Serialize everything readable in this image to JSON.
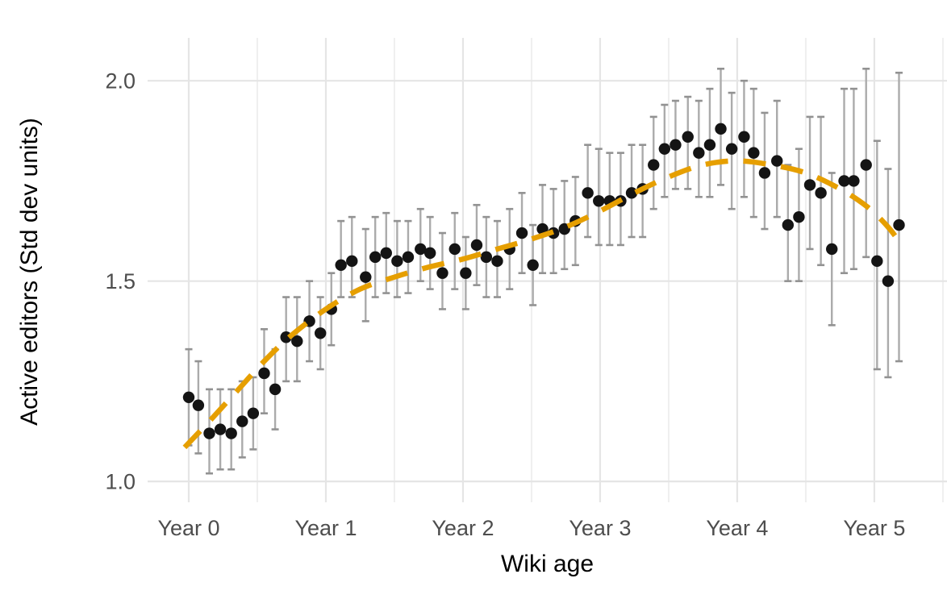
{
  "figure": {
    "xlabel": "Wiki age",
    "ylabel": "Active editors (Std dev units)"
  },
  "colors": {
    "background": "#ffffff",
    "grid_major": "#e5e5e5",
    "grid_minor": "#efefef",
    "point": "#141414",
    "errorbar": "#ababab",
    "errorbar_cap": "#929292",
    "trend": "#e69f00",
    "tick_label": "#4d4d4d",
    "axis_title": "#000000"
  },
  "chart_data": {
    "type": "scatter",
    "title": "",
    "xlabel": "Wiki age",
    "ylabel": "Active editors (Std dev units)",
    "x_unit": "wiki age in years",
    "xlim": [
      -0.3,
      5.53
    ],
    "ylim": [
      0.948,
      2.107
    ],
    "x_major_ticks": [
      0,
      1,
      2,
      3,
      4,
      5
    ],
    "x_tick_labels": [
      "Year 0",
      "Year 1",
      "Year 2",
      "Year 3",
      "Year 4",
      "Year 5"
    ],
    "x_minor_ticks": [
      0.5,
      1.5,
      2.5,
      3.5,
      4.5,
      5.5
    ],
    "y_major_ticks": [
      1.0,
      1.5,
      2.0
    ],
    "y_tick_labels": [
      "1.0",
      "1.5",
      "2.0"
    ],
    "grid": "vertical major+minor, horizontal major only; light gray on white",
    "legend": "none",
    "series": [
      {
        "name": "Mean active editors with confidence interval",
        "type": "pointrange",
        "point_color": "#141414",
        "bar_color": "#ababab",
        "points_format": [
          "x_years",
          "y",
          "ci_low",
          "ci_high"
        ],
        "points": [
          [
            0.0,
            1.21,
            1.09,
            1.33
          ],
          [
            0.07,
            1.19,
            1.07,
            1.3
          ],
          [
            0.15,
            1.12,
            1.02,
            1.23
          ],
          [
            0.23,
            1.13,
            1.03,
            1.23
          ],
          [
            0.31,
            1.12,
            1.03,
            1.23
          ],
          [
            0.39,
            1.15,
            1.06,
            1.25
          ],
          [
            0.47,
            1.17,
            1.08,
            1.26
          ],
          [
            0.55,
            1.27,
            1.17,
            1.38
          ],
          [
            0.63,
            1.23,
            1.13,
            1.33
          ],
          [
            0.71,
            1.36,
            1.25,
            1.46
          ],
          [
            0.79,
            1.35,
            1.25,
            1.46
          ],
          [
            0.88,
            1.4,
            1.3,
            1.5
          ],
          [
            0.96,
            1.37,
            1.28,
            1.46
          ],
          [
            1.04,
            1.43,
            1.34,
            1.52
          ],
          [
            1.11,
            1.54,
            1.46,
            1.65
          ],
          [
            1.19,
            1.55,
            1.46,
            1.66
          ],
          [
            1.29,
            1.51,
            1.4,
            1.63
          ],
          [
            1.36,
            1.56,
            1.46,
            1.66
          ],
          [
            1.44,
            1.57,
            1.47,
            1.67
          ],
          [
            1.52,
            1.55,
            1.46,
            1.65
          ],
          [
            1.6,
            1.56,
            1.47,
            1.65
          ],
          [
            1.69,
            1.58,
            1.5,
            1.68
          ],
          [
            1.76,
            1.57,
            1.48,
            1.66
          ],
          [
            1.85,
            1.52,
            1.43,
            1.62
          ],
          [
            1.94,
            1.58,
            1.48,
            1.67
          ],
          [
            2.02,
            1.52,
            1.43,
            1.61
          ],
          [
            2.1,
            1.59,
            1.49,
            1.69
          ],
          [
            2.17,
            1.56,
            1.46,
            1.66
          ],
          [
            2.25,
            1.55,
            1.46,
            1.65
          ],
          [
            2.34,
            1.58,
            1.48,
            1.68
          ],
          [
            2.43,
            1.62,
            1.52,
            1.72
          ],
          [
            2.51,
            1.54,
            1.44,
            1.64
          ],
          [
            2.58,
            1.63,
            1.52,
            1.74
          ],
          [
            2.66,
            1.62,
            1.52,
            1.73
          ],
          [
            2.74,
            1.63,
            1.53,
            1.75
          ],
          [
            2.82,
            1.65,
            1.54,
            1.76
          ],
          [
            2.91,
            1.72,
            1.61,
            1.84
          ],
          [
            2.99,
            1.7,
            1.59,
            1.83
          ],
          [
            3.07,
            1.7,
            1.59,
            1.82
          ],
          [
            3.15,
            1.7,
            1.59,
            1.82
          ],
          [
            3.23,
            1.72,
            1.61,
            1.84
          ],
          [
            3.31,
            1.73,
            1.61,
            1.84
          ],
          [
            3.39,
            1.79,
            1.68,
            1.91
          ],
          [
            3.47,
            1.83,
            1.71,
            1.94
          ],
          [
            3.55,
            1.84,
            1.73,
            1.95
          ],
          [
            3.64,
            1.86,
            1.73,
            1.96
          ],
          [
            3.72,
            1.82,
            1.71,
            1.95
          ],
          [
            3.8,
            1.84,
            1.71,
            1.98
          ],
          [
            3.88,
            1.88,
            1.74,
            2.03
          ],
          [
            3.96,
            1.83,
            1.68,
            1.97
          ],
          [
            4.05,
            1.86,
            1.71,
            2.0
          ],
          [
            4.12,
            1.82,
            1.66,
            1.98
          ],
          [
            4.2,
            1.77,
            1.63,
            1.92
          ],
          [
            4.29,
            1.8,
            1.66,
            1.95
          ],
          [
            4.37,
            1.64,
            1.5,
            1.79
          ],
          [
            4.45,
            1.66,
            1.5,
            1.83
          ],
          [
            4.53,
            1.74,
            1.58,
            1.91
          ],
          [
            4.61,
            1.72,
            1.54,
            1.91
          ],
          [
            4.69,
            1.58,
            1.39,
            1.77
          ],
          [
            4.78,
            1.75,
            1.52,
            1.98
          ],
          [
            4.85,
            1.75,
            1.53,
            1.98
          ],
          [
            4.94,
            1.79,
            1.56,
            2.03
          ],
          [
            5.02,
            1.55,
            1.28,
            1.85
          ],
          [
            5.1,
            1.5,
            1.26,
            1.78
          ],
          [
            5.18,
            1.64,
            1.3,
            2.02
          ]
        ]
      },
      {
        "name": "Smoothed trend",
        "type": "dashed-line",
        "color": "#e69f00",
        "points": [
          [
            -0.03,
            1.085
          ],
          [
            0.15,
            1.15
          ],
          [
            0.35,
            1.225
          ],
          [
            0.55,
            1.3
          ],
          [
            0.75,
            1.365
          ],
          [
            1.0,
            1.43
          ],
          [
            1.25,
            1.48
          ],
          [
            1.5,
            1.51
          ],
          [
            1.75,
            1.535
          ],
          [
            2.0,
            1.555
          ],
          [
            2.25,
            1.58
          ],
          [
            2.5,
            1.605
          ],
          [
            2.75,
            1.635
          ],
          [
            3.0,
            1.675
          ],
          [
            3.25,
            1.72
          ],
          [
            3.5,
            1.76
          ],
          [
            3.75,
            1.79
          ],
          [
            4.0,
            1.8
          ],
          [
            4.25,
            1.79
          ],
          [
            4.5,
            1.77
          ],
          [
            4.75,
            1.73
          ],
          [
            4.95,
            1.685
          ],
          [
            5.1,
            1.635
          ],
          [
            5.21,
            1.585
          ]
        ]
      }
    ]
  }
}
